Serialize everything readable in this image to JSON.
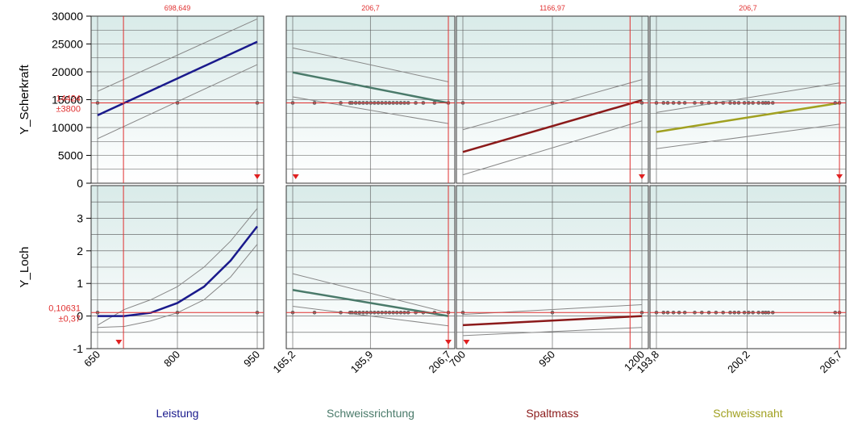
{
  "chart_data": {
    "type": "line",
    "title": "",
    "responses": [
      {
        "name": "Y_Scherkraft",
        "ylim": [
          0,
          30000
        ],
        "yticks": [
          "0",
          "5000",
          "10000",
          "15000",
          "20000",
          "25000",
          "30000"
        ],
        "current_value": "14424",
        "ci": "±3800",
        "current_num": 14424
      },
      {
        "name": "Y_Loch",
        "ylim": [
          -1,
          4
        ],
        "yticks": [
          "-1",
          "0",
          "1",
          "2",
          "3"
        ],
        "current_value": "0,10631",
        "ci": "±0,37",
        "current_num": 0.10631
      }
    ],
    "factors": [
      {
        "name": "Leistung",
        "color": "#1a1a8c",
        "xlim": [
          650,
          950
        ],
        "xticks": [
          "650",
          "800",
          "950"
        ],
        "xtick_values": [
          650,
          800,
          950
        ],
        "current_label": "698,649",
        "current_x": 698.649,
        "series": [
          {
            "x": [
              650,
              950
            ],
            "y": [
              12200,
              25400
            ],
            "upper": [
              16500,
              29500
            ],
            "lower": [
              8000,
              21300
            ]
          },
          {
            "x": [
              650,
              700,
              750,
              800,
              850,
              900,
              950
            ],
            "y": [
              0.0,
              0.0,
              0.1,
              0.4,
              0.9,
              1.7,
              2.75
            ],
            "upper": [
              -0.28,
              0.2,
              0.5,
              0.9,
              1.5,
              2.3,
              3.3
            ],
            "lower": [
              -0.35,
              -0.32,
              -0.15,
              0.1,
              0.5,
              1.2,
              2.2
            ]
          }
        ],
        "points_top": [
          650,
          800,
          950
        ],
        "points_bottom": [
          650,
          800,
          950
        ],
        "markers_top": [
          950
        ],
        "markers_bottom": [
          690
        ]
      },
      {
        "name": "Schweissrichtung",
        "color": "#4a7a6a",
        "xlim": [
          165.2,
          206.7
        ],
        "xticks": [
          "165,2",
          "185,9",
          "206,7"
        ],
        "xtick_values": [
          165.2,
          185.9,
          206.7
        ],
        "current_label": "206,7",
        "current_x": 206.7,
        "series": [
          {
            "x": [
              165.2,
              206.7
            ],
            "y": [
              19900,
              14400
            ],
            "upper": [
              24300,
              18200
            ],
            "lower": [
              15500,
              10700
            ]
          },
          {
            "x": [
              165.2,
              206.7
            ],
            "y": [
              0.8,
              0.0
            ],
            "upper": [
              1.3,
              0.1
            ],
            "lower": [
              0.3,
              -0.3
            ]
          }
        ],
        "points_top": [
          165.2,
          171,
          178,
          180.5,
          181,
          182,
          183,
          184,
          185,
          186,
          187,
          188,
          189,
          190,
          191,
          192,
          193,
          194,
          195,
          196,
          198,
          200,
          203,
          206.7
        ],
        "points_bottom": [
          165.2,
          171,
          178,
          180.5,
          181,
          182,
          183,
          184,
          185,
          186,
          187,
          188,
          189,
          190,
          191,
          192,
          193,
          194,
          195,
          196,
          198,
          200,
          203,
          206.7
        ],
        "markers_top": [
          166
        ],
        "markers_bottom": [
          206.7
        ]
      },
      {
        "name": "Spaltmass",
        "color": "#8b1a1a",
        "xlim": [
          700,
          1200
        ],
        "xticks": [
          "700",
          "950",
          "1200"
        ],
        "xtick_values": [
          700,
          950,
          1200
        ],
        "current_label": "1166,97",
        "current_x": 1166.97,
        "series": [
          {
            "x": [
              700,
              1200
            ],
            "y": [
              5600,
              14900
            ],
            "upper": [
              9600,
              18600
            ],
            "lower": [
              1500,
              11200
            ]
          },
          {
            "x": [
              700,
              1200
            ],
            "y": [
              -0.28,
              0.0
            ],
            "upper": [
              0.05,
              0.35
            ],
            "lower": [
              -0.6,
              -0.35
            ]
          }
        ],
        "points_top": [
          700,
          950,
          1200
        ],
        "points_bottom": [
          700,
          950,
          1200
        ],
        "markers_top": [
          1200
        ],
        "markers_bottom": [
          710
        ]
      },
      {
        "name": "Schweissnaht",
        "color": "#a0a020",
        "xlim": [
          193.8,
          206.7
        ],
        "xticks": [
          "193,8",
          "200,2",
          "206,7"
        ],
        "xtick_values": [
          193.8,
          200.2,
          206.7
        ],
        "current_label": "206,7",
        "current_x": 206.7,
        "series": [
          {
            "x": [
              193.8,
              206.7
            ],
            "y": [
              9200,
              14400
            ],
            "upper": [
              12700,
              18000
            ],
            "lower": [
              6200,
              10600
            ]
          },
          {
            "x": [
              193.8,
              206.7
            ],
            "y": [
              0.0,
              0.0
            ],
            "upper": [
              0.0,
              0.0
            ],
            "lower": [
              0.0,
              0.0
            ]
          }
        ],
        "points_top": [
          193.8,
          194.3,
          194.6,
          195,
          195.4,
          195.8,
          196.5,
          197,
          197.5,
          198,
          198.5,
          199,
          199.3,
          199.6,
          200,
          200.3,
          200.6,
          201,
          201.3,
          201.5,
          201.7,
          202,
          206.4,
          206.7
        ],
        "points_bottom": [
          193.8,
          194.3,
          194.6,
          195,
          195.4,
          195.8,
          196.5,
          197,
          197.5,
          198,
          198.5,
          199,
          199.3,
          199.6,
          200,
          200.3,
          200.6,
          201,
          201.3,
          201.5,
          201.7,
          202,
          206.4,
          206.7
        ],
        "markers_top": [
          206.7
        ],
        "markers_bottom": [],
        "bottom_flat": true
      }
    ]
  }
}
